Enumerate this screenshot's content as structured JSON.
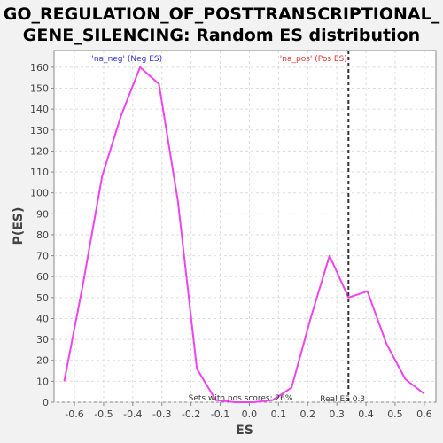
{
  "chart_data": {
    "type": "line",
    "title_line1": "GO_REGULATION_OF_POSTTRANSCRIPTIONAL_",
    "title_line2": "GENE_SILENCING: Random ES distribution",
    "xlabel": "ES",
    "ylabel": "P(ES)",
    "xlim": [
      -0.67,
      0.64
    ],
    "ylim": [
      0,
      168
    ],
    "x_ticks": [
      -0.6,
      -0.5,
      -0.4,
      -0.3,
      -0.2,
      -0.1,
      0.0,
      0.1,
      0.2,
      0.3,
      0.4,
      0.5,
      0.6
    ],
    "x_tick_labels": [
      "-0.6",
      "-0.5",
      "-0.4",
      "-0.3",
      "-0.2",
      "-0.1",
      "0.0",
      "0.1",
      "0.2",
      "0.3",
      "0.4",
      "0.5",
      "0.6"
    ],
    "y_ticks": [
      0,
      10,
      20,
      30,
      40,
      50,
      60,
      70,
      80,
      90,
      100,
      110,
      120,
      130,
      140,
      150,
      160
    ],
    "grid": true,
    "series": [
      {
        "color": "#ee44ee",
        "x": [
          -0.635,
          -0.57,
          -0.505,
          -0.44,
          -0.375,
          -0.31,
          -0.245,
          -0.18,
          -0.115,
          -0.05,
          0.015,
          0.08,
          0.145,
          0.21,
          0.275,
          0.34,
          0.405,
          0.47,
          0.535,
          0.6
        ],
        "y": [
          10,
          57,
          108,
          137,
          160,
          152,
          96,
          16,
          1,
          0,
          0,
          1,
          7,
          40,
          70,
          50,
          53,
          28,
          11,
          4
        ]
      }
    ],
    "legend": [
      {
        "label": "'na_neg' (Neg ES)",
        "color": "#3333cc"
      },
      {
        "label": "'na_pos' (Pos ES)",
        "color": "#dd3333"
      }
    ],
    "real_es": {
      "x": 0.34,
      "label": "Real ES 0.3",
      "color": "#333333"
    },
    "annotation": "Sets with pos scores: 26%"
  }
}
